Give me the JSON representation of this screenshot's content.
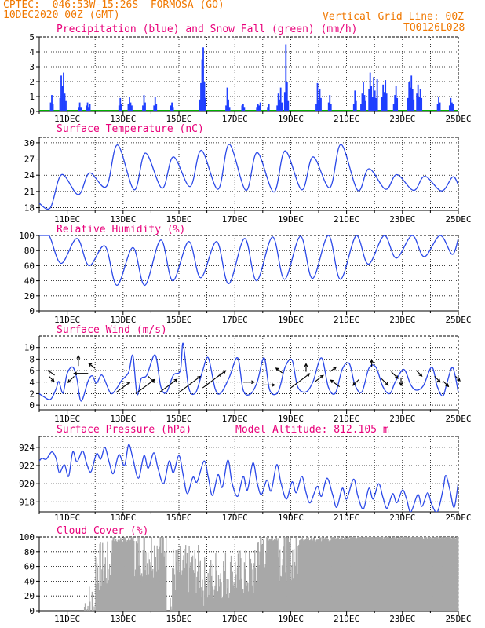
{
  "header": {
    "line1": "CPTEC:  046:53W-15:26S  FORMOSA (GO)",
    "line2": "10DEC2020 00Z (GMT)",
    "grid_note": "Vertical Grid Line: 00Z",
    "model_code": "TQ0126L028"
  },
  "colors": {
    "header": "#f07800",
    "title": "#e8007a",
    "precip": "#1f3fff",
    "snow": "#00b000",
    "line": "#2a48e8",
    "arrow": "#000000",
    "cloud": "#a8a8a8",
    "grid": "#000000"
  },
  "date_labels": [
    "11DEC",
    "13DEC",
    "15DEC",
    "17DEC",
    "19DEC",
    "21DEC",
    "23DEC",
    "25DEC"
  ],
  "chart_data": [
    {
      "id": "precip",
      "type": "bar",
      "title": "Precipitation (blue) and Snow Fall (green) (mm/h)",
      "x_unit": "days since 10DEC2020 00Z",
      "ylim": [
        0,
        5
      ],
      "yticks": [
        0,
        1,
        2,
        3,
        4,
        5
      ],
      "bursts": [
        {
          "x": 0.45,
          "values": [
            0.6,
            1.1,
            0.5
          ]
        },
        {
          "x": 0.85,
          "values": [
            0.9,
            2.4,
            1.7,
            2.6,
            1.2,
            0.7
          ]
        },
        {
          "x": 1.45,
          "values": [
            0.3,
            0.6,
            0.3
          ]
        },
        {
          "x": 1.75,
          "values": [
            0.4,
            0.6,
            0.3,
            0.5
          ]
        },
        {
          "x": 2.9,
          "values": [
            0.4,
            0.9,
            0.5
          ]
        },
        {
          "x": 3.25,
          "values": [
            0.5,
            1.0,
            0.6,
            0.4
          ]
        },
        {
          "x": 3.75,
          "values": [
            0.4,
            1.1,
            0.6
          ]
        },
        {
          "x": 4.15,
          "values": [
            0.4,
            1.0,
            0.5
          ]
        },
        {
          "x": 4.75,
          "values": [
            0.4,
            0.6,
            0.3
          ]
        },
        {
          "x": 5.85,
          "values": [
            0.8,
            1.9,
            3.5,
            4.3,
            2.0,
            0.9
          ]
        },
        {
          "x": 6.75,
          "values": [
            0.4,
            1.6,
            0.8,
            0.3
          ]
        },
        {
          "x": 7.3,
          "values": [
            0.4,
            0.5,
            0.3
          ]
        },
        {
          "x": 7.85,
          "values": [
            0.3,
            0.5,
            0.4,
            0.6
          ]
        },
        {
          "x": 8.2,
          "values": [
            0.3,
            0.5
          ]
        },
        {
          "x": 8.6,
          "values": [
            0.4,
            1.2,
            0.8,
            1.6,
            0.6
          ]
        },
        {
          "x": 8.85,
          "values": [
            1.3,
            4.5,
            2.0,
            0.7
          ]
        },
        {
          "x": 10.0,
          "values": [
            0.5,
            1.9,
            0.8,
            1.5,
            0.9
          ]
        },
        {
          "x": 10.4,
          "values": [
            0.6,
            1.1,
            0.5
          ]
        },
        {
          "x": 11.3,
          "values": [
            0.5,
            1.4,
            0.7
          ]
        },
        {
          "x": 11.6,
          "values": [
            0.5,
            1.2,
            2.0,
            1.1,
            0.7
          ]
        },
        {
          "x": 11.95,
          "values": [
            1.5,
            2.6,
            1.7,
            1.0,
            2.3,
            1.4,
            0.9,
            2.2
          ]
        },
        {
          "x": 12.35,
          "values": [
            1.0,
            1.8,
            1.3,
            2.1,
            1.2
          ]
        },
        {
          "x": 12.75,
          "values": [
            0.5,
            1.1,
            1.7,
            0.9
          ]
        },
        {
          "x": 13.3,
          "values": [
            0.9,
            2.0,
            1.6,
            2.4,
            1.5,
            0.8
          ]
        },
        {
          "x": 13.6,
          "values": [
            1.2,
            1.8,
            1.0,
            1.5,
            0.9
          ]
        },
        {
          "x": 14.3,
          "values": [
            0.5,
            1.0,
            0.6
          ]
        },
        {
          "x": 14.75,
          "values": [
            0.4,
            0.9,
            0.6,
            0.5
          ]
        }
      ]
    },
    {
      "id": "temp",
      "type": "line",
      "title": "Surface Temperature (nC)",
      "ylim": [
        17.5,
        31
      ],
      "yticks": [
        18,
        21,
        24,
        27,
        30
      ],
      "daily_min": [
        18.0,
        20.4,
        21.9,
        21.3,
        21.6,
        21.9,
        21.4,
        21.2,
        20.9,
        21.3,
        21.7,
        21.2,
        21.4,
        21.2,
        21.1
      ],
      "daily_max": [
        24.1,
        24.4,
        29.6,
        28.1,
        27.4,
        28.6,
        29.7,
        28.2,
        28.5,
        27.4,
        29.7,
        25.2,
        24.1,
        23.8,
        23.7
      ]
    },
    {
      "id": "rh",
      "type": "line",
      "title": "Relative Humidity (%)",
      "ylim": [
        0,
        100
      ],
      "yticks": [
        0,
        20,
        40,
        60,
        80,
        100
      ],
      "daily_max": [
        100,
        96,
        86,
        84,
        94,
        92,
        92,
        96,
        98,
        99,
        100,
        100,
        100,
        100,
        100
      ],
      "daily_min": [
        63,
        60,
        34,
        34,
        40,
        44,
        36,
        40,
        42,
        43,
        42,
        62,
        70,
        72,
        75
      ]
    },
    {
      "id": "wind",
      "type": "line",
      "title": "Surface Wind (m/s)",
      "ylim": [
        -0.8,
        12
      ],
      "yticks": [
        0,
        2,
        4,
        6,
        8,
        10
      ],
      "speed_points": [
        [
          0.0,
          2.0
        ],
        [
          0.12,
          1.6
        ],
        [
          0.4,
          1.0
        ],
        [
          0.6,
          2.8
        ],
        [
          0.7,
          4.1
        ],
        [
          0.85,
          2.1
        ],
        [
          1.0,
          5.5
        ],
        [
          1.2,
          6.6
        ],
        [
          1.35,
          4.5
        ],
        [
          1.5,
          0.7
        ],
        [
          1.75,
          4.2
        ],
        [
          1.9,
          5.1
        ],
        [
          2.05,
          3.8
        ],
        [
          2.25,
          5.2
        ],
        [
          2.55,
          2.1
        ],
        [
          2.75,
          2.8
        ],
        [
          2.95,
          4.3
        ],
        [
          3.2,
          5.7
        ],
        [
          3.35,
          8.6
        ],
        [
          3.5,
          1.9
        ],
        [
          3.65,
          4.6
        ],
        [
          3.85,
          5.2
        ],
        [
          4.15,
          8.7
        ],
        [
          4.35,
          3.2
        ],
        [
          4.55,
          2.2
        ],
        [
          4.8,
          5.2
        ],
        [
          5.05,
          6.0
        ],
        [
          5.15,
          10.7
        ],
        [
          5.35,
          3.0
        ],
        [
          5.6,
          2.2
        ],
        [
          5.85,
          6.0
        ],
        [
          6.05,
          8.2
        ],
        [
          6.3,
          2.8
        ],
        [
          6.5,
          2.1
        ],
        [
          6.8,
          4.8
        ],
        [
          7.1,
          8.2
        ],
        [
          7.3,
          2.6
        ],
        [
          7.55,
          1.9
        ],
        [
          7.8,
          4.0
        ],
        [
          8.05,
          8.2
        ],
        [
          8.25,
          2.6
        ],
        [
          8.55,
          2.3
        ],
        [
          8.8,
          6.6
        ],
        [
          9.05,
          7.8
        ],
        [
          9.25,
          3.2
        ],
        [
          9.55,
          2.3
        ],
        [
          9.8,
          4.1
        ],
        [
          10.1,
          8.2
        ],
        [
          10.35,
          3.1
        ],
        [
          10.6,
          2.1
        ],
        [
          10.85,
          6.3
        ],
        [
          11.1,
          7.2
        ],
        [
          11.3,
          3.5
        ],
        [
          11.55,
          2.3
        ],
        [
          11.8,
          6.4
        ],
        [
          12.05,
          6.6
        ],
        [
          12.3,
          3.2
        ],
        [
          12.55,
          2.0
        ],
        [
          12.75,
          4.1
        ],
        [
          13.05,
          6.2
        ],
        [
          13.3,
          3.5
        ],
        [
          13.5,
          2.6
        ],
        [
          13.75,
          3.4
        ],
        [
          14.05,
          6.6
        ],
        [
          14.25,
          3.2
        ],
        [
          14.45,
          1.6
        ],
        [
          14.6,
          4.0
        ],
        [
          14.8,
          6.5
        ],
        [
          15.0,
          2.2
        ]
      ],
      "vectors": [
        {
          "x": 0.35,
          "y": 5.0,
          "dir": "SE",
          "len": 9
        },
        {
          "x": 0.55,
          "y": 5.2,
          "dir": "NW",
          "len": 10
        },
        {
          "x": 1.25,
          "y": 5.0,
          "dir": "SW",
          "len": 11
        },
        {
          "x": 1.4,
          "y": 6.8,
          "dir": "N",
          "len": 13
        },
        {
          "x": 1.75,
          "y": 5.5,
          "dir": "W",
          "len": 18
        },
        {
          "x": 2.0,
          "y": 6.4,
          "dir": "NW",
          "len": 10
        },
        {
          "x": 2.75,
          "y": 2.2,
          "dir": "NE",
          "len": 22
        },
        {
          "x": 3.45,
          "y": 2.0,
          "dir": "NE",
          "len": 30
        },
        {
          "x": 3.9,
          "y": 5.0,
          "dir": "SE",
          "len": 11
        },
        {
          "x": 4.3,
          "y": 2.2,
          "dir": "NE",
          "len": 28
        },
        {
          "x": 5.0,
          "y": 2.2,
          "dir": "NE",
          "len": 34
        },
        {
          "x": 5.85,
          "y": 3.0,
          "dir": "NE",
          "len": 30
        },
        {
          "x": 6.4,
          "y": 5.0,
          "dir": "NE",
          "len": 12
        },
        {
          "x": 7.3,
          "y": 4.0,
          "dir": "E",
          "len": 14
        },
        {
          "x": 8.0,
          "y": 3.5,
          "dir": "E",
          "len": 15
        },
        {
          "x": 8.7,
          "y": 5.6,
          "dir": "NW",
          "len": 10
        },
        {
          "x": 9.0,
          "y": 3.0,
          "dir": "NE",
          "len": 30
        },
        {
          "x": 9.55,
          "y": 5.8,
          "dir": "N",
          "len": 10
        },
        {
          "x": 9.85,
          "y": 4.0,
          "dir": "NE",
          "len": 14
        },
        {
          "x": 10.4,
          "y": 5.8,
          "dir": "NE",
          "len": 10
        },
        {
          "x": 10.75,
          "y": 3.2,
          "dir": "NW",
          "len": 14
        },
        {
          "x": 11.45,
          "y": 4.5,
          "dir": "SW",
          "len": 11
        },
        {
          "x": 11.9,
          "y": 6.6,
          "dir": "N",
          "len": 9
        },
        {
          "x": 12.25,
          "y": 4.6,
          "dir": "SE",
          "len": 12
        },
        {
          "x": 12.6,
          "y": 5.8,
          "dir": "SE",
          "len": 12
        },
        {
          "x": 12.95,
          "y": 4.8,
          "dir": "S",
          "len": 10
        },
        {
          "x": 13.5,
          "y": 6.0,
          "dir": "SE",
          "len": 10
        },
        {
          "x": 14.15,
          "y": 5.0,
          "dir": "SE",
          "len": 10
        },
        {
          "x": 14.45,
          "y": 4.2,
          "dir": "SE",
          "len": 10
        },
        {
          "x": 14.9,
          "y": 5.0,
          "dir": "SE",
          "len": 8
        }
      ]
    },
    {
      "id": "pressure",
      "type": "line",
      "title": "Surface Pressure (hPa)",
      "altitude_label": "Model Altitude: 812.105 m",
      "ylim": [
        916.9,
        925.2
      ],
      "yticks": [
        918,
        920,
        922,
        924
      ],
      "points": [
        [
          0.0,
          922.5
        ],
        [
          0.1,
          922.8
        ],
        [
          0.25,
          922.7
        ],
        [
          0.45,
          923.5
        ],
        [
          0.6,
          922.8
        ],
        [
          0.72,
          921.2
        ],
        [
          0.9,
          922.1
        ],
        [
          1.05,
          920.8
        ],
        [
          1.2,
          923.5
        ],
        [
          1.35,
          922.4
        ],
        [
          1.55,
          923.6
        ],
        [
          1.7,
          922.2
        ],
        [
          1.85,
          921.3
        ],
        [
          2.05,
          923.3
        ],
        [
          2.2,
          922.7
        ],
        [
          2.35,
          924.0
        ],
        [
          2.5,
          922.4
        ],
        [
          2.65,
          921.1
        ],
        [
          2.85,
          923.2
        ],
        [
          3.05,
          922.0
        ],
        [
          3.2,
          924.3
        ],
        [
          3.35,
          922.8
        ],
        [
          3.55,
          920.6
        ],
        [
          3.75,
          923.1
        ],
        [
          3.9,
          921.7
        ],
        [
          4.1,
          923.4
        ],
        [
          4.25,
          921.7
        ],
        [
          4.45,
          920.0
        ],
        [
          4.65,
          922.5
        ],
        [
          4.8,
          921.2
        ],
        [
          5.0,
          923.1
        ],
        [
          5.15,
          921.0
        ],
        [
          5.3,
          918.9
        ],
        [
          5.5,
          920.7
        ],
        [
          5.65,
          920.2
        ],
        [
          5.9,
          922.5
        ],
        [
          6.05,
          920.7
        ],
        [
          6.2,
          918.7
        ],
        [
          6.4,
          921.0
        ],
        [
          6.55,
          919.6
        ],
        [
          6.75,
          922.6
        ],
        [
          6.9,
          920.1
        ],
        [
          7.1,
          918.6
        ],
        [
          7.3,
          920.8
        ],
        [
          7.45,
          919.3
        ],
        [
          7.65,
          922.3
        ],
        [
          7.8,
          920.1
        ],
        [
          7.95,
          918.8
        ],
        [
          8.15,
          920.4
        ],
        [
          8.3,
          919.2
        ],
        [
          8.5,
          922.1
        ],
        [
          8.65,
          920.1
        ],
        [
          8.85,
          918.3
        ],
        [
          9.05,
          920.2
        ],
        [
          9.2,
          919.0
        ],
        [
          9.4,
          920.8
        ],
        [
          9.55,
          919.0
        ],
        [
          9.7,
          917.9
        ],
        [
          9.95,
          919.7
        ],
        [
          10.1,
          918.6
        ],
        [
          10.3,
          920.6
        ],
        [
          10.5,
          918.8
        ],
        [
          10.65,
          917.4
        ],
        [
          10.85,
          919.5
        ],
        [
          11.0,
          918.3
        ],
        [
          11.25,
          920.5
        ],
        [
          11.4,
          918.7
        ],
        [
          11.6,
          917.2
        ],
        [
          11.8,
          919.5
        ],
        [
          11.95,
          918.3
        ],
        [
          12.15,
          920.0
        ],
        [
          12.3,
          918.5
        ],
        [
          12.45,
          917.3
        ],
        [
          12.65,
          918.9
        ],
        [
          12.8,
          917.9
        ],
        [
          13.0,
          919.3
        ],
        [
          13.15,
          918.3
        ],
        [
          13.3,
          916.9
        ],
        [
          13.55,
          918.8
        ],
        [
          13.7,
          917.5
        ],
        [
          13.9,
          919.0
        ],
        [
          14.05,
          917.7
        ],
        [
          14.25,
          916.9
        ],
        [
          14.45,
          919.3
        ],
        [
          14.55,
          920.9
        ],
        [
          14.7,
          919.3
        ],
        [
          14.85,
          917.4
        ],
        [
          15.0,
          920.2
        ]
      ]
    },
    {
      "id": "cloud",
      "type": "area",
      "title": "Cloud Cover (%)",
      "ylim": [
        0,
        100
      ],
      "yticks": [
        0,
        20,
        40,
        60,
        80,
        100
      ],
      "segments": [
        {
          "x0": 0.0,
          "x1": 1.6,
          "cloud": 0
        },
        {
          "x0": 1.6,
          "x1": 2.0,
          "cloud": 6
        },
        {
          "x0": 2.0,
          "x1": 2.6,
          "cloud": 60
        },
        {
          "x0": 2.6,
          "x1": 3.4,
          "cloud": 95
        },
        {
          "x0": 3.4,
          "x1": 4.2,
          "cloud": 80
        },
        {
          "x0": 4.2,
          "x1": 4.55,
          "cloud": 90
        },
        {
          "x0": 4.55,
          "x1": 4.75,
          "cloud": 10
        },
        {
          "x0": 4.75,
          "x1": 5.8,
          "cloud": 55
        },
        {
          "x0": 5.8,
          "x1": 6.3,
          "cloud": 40
        },
        {
          "x0": 6.3,
          "x1": 7.8,
          "cloud": 50
        },
        {
          "x0": 7.8,
          "x1": 8.15,
          "cloud": 88
        },
        {
          "x0": 8.15,
          "x1": 8.55,
          "cloud": 97
        },
        {
          "x0": 8.55,
          "x1": 9.3,
          "cloud": 75
        },
        {
          "x0": 9.3,
          "x1": 10.5,
          "cloud": 96
        },
        {
          "x0": 10.5,
          "x1": 15.0,
          "cloud": 100
        }
      ]
    }
  ]
}
